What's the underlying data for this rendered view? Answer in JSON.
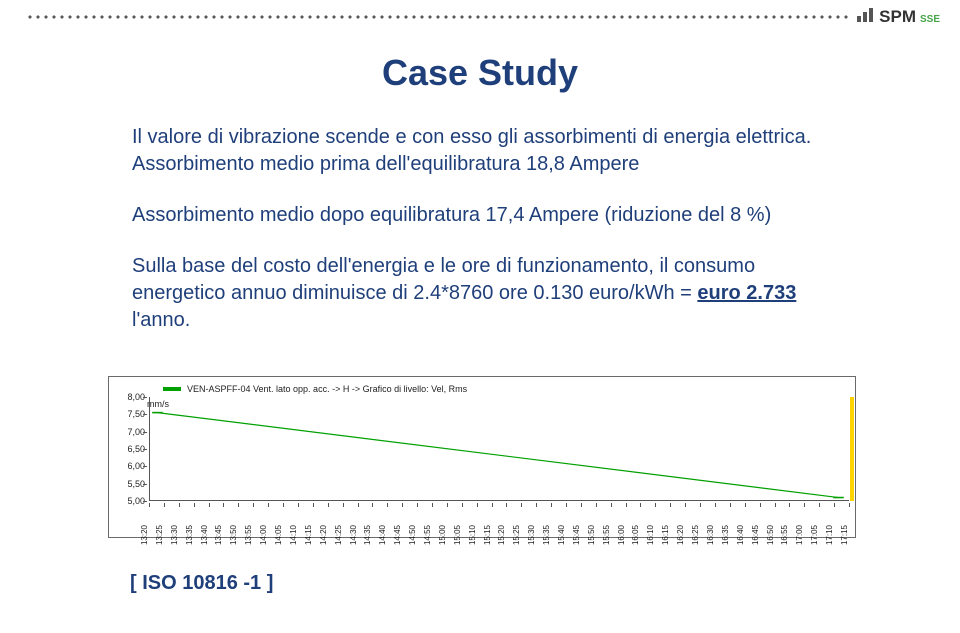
{
  "header": {
    "logo_text": "SPM",
    "logo_suffix": "SSE",
    "logo_bar_heights": [
      6,
      10,
      14
    ],
    "logo_bar_color": "#555555",
    "logo_sse_color": "#47a447",
    "dot_color": "#5a5a5a"
  },
  "title": {
    "text": "Case Study",
    "color": "#1f3f7a",
    "fontsize": 36
  },
  "body": {
    "color": "#1f3f7a",
    "fontsize": 20,
    "p1_a": "Il valore di vibrazione scende e con esso gli assorbimenti di energia elettrica.",
    "p1_b": "Assorbimento medio prima dell'equilibratura 18,8 Ampere",
    "p2": "Assorbimento medio dopo equilibratura 17,4 Ampere (riduzione del 8 %)",
    "p3_pre": "Sulla base del costo dell'energia e le ore di funzionamento, il consumo energetico annuo diminuisce di 2.4*8760 ore 0.130 euro/kWh = ",
    "p3_bold": "euro 2.733",
    "p3_post": " l'anno."
  },
  "chart": {
    "type": "line",
    "legend_text": "VEN-ASPFF-04 Vent. lato opp. acc. -> H -> Grafico di livello: Vel, Rms",
    "legend_color": "#00a000",
    "y_unit": "mm/s",
    "ylim": [
      5.0,
      8.0
    ],
    "ytick_step": 0.5,
    "yticks": [
      "8,00",
      "7,50",
      "7,00",
      "6,50",
      "6,00",
      "5,50",
      "5,00"
    ],
    "xticks": [
      "13:20",
      "13:25",
      "13:30",
      "13:35",
      "13:40",
      "13:45",
      "13:50",
      "13:55",
      "14:00",
      "14:05",
      "14:10",
      "14:15",
      "14:20",
      "14:25",
      "14:30",
      "14:35",
      "14:40",
      "14:45",
      "14:50",
      "14:55",
      "15:00",
      "15:05",
      "15:10",
      "15:15",
      "15:20",
      "15:25",
      "15:30",
      "15:35",
      "15:40",
      "15:45",
      "15:50",
      "15:55",
      "16:00",
      "16:05",
      "16:10",
      "16:15",
      "16:20",
      "16:25",
      "16:30",
      "16:35",
      "16:40",
      "16:45",
      "16:50",
      "16:55",
      "17:00",
      "17:05",
      "17:10",
      "17:15"
    ],
    "series": [
      {
        "x_frac": 0.012,
        "y": 7.55
      },
      {
        "x_frac": 0.985,
        "y": 5.1
      }
    ],
    "line_color": "#00a000",
    "line_width": 1.2,
    "marker_color": "#00a000",
    "marker_size": 3,
    "grid_color": "#555555",
    "axis_color": "#555555",
    "background_color": "#ffffff",
    "right_bar_color": "#ffd400",
    "legend_fontsize": 9,
    "tick_fontsize": 9,
    "xtick_fontsize": 8
  },
  "caption": {
    "text": "[ ISO 10816 -1 ]",
    "color": "#1f3f7a",
    "fontsize": 20
  }
}
